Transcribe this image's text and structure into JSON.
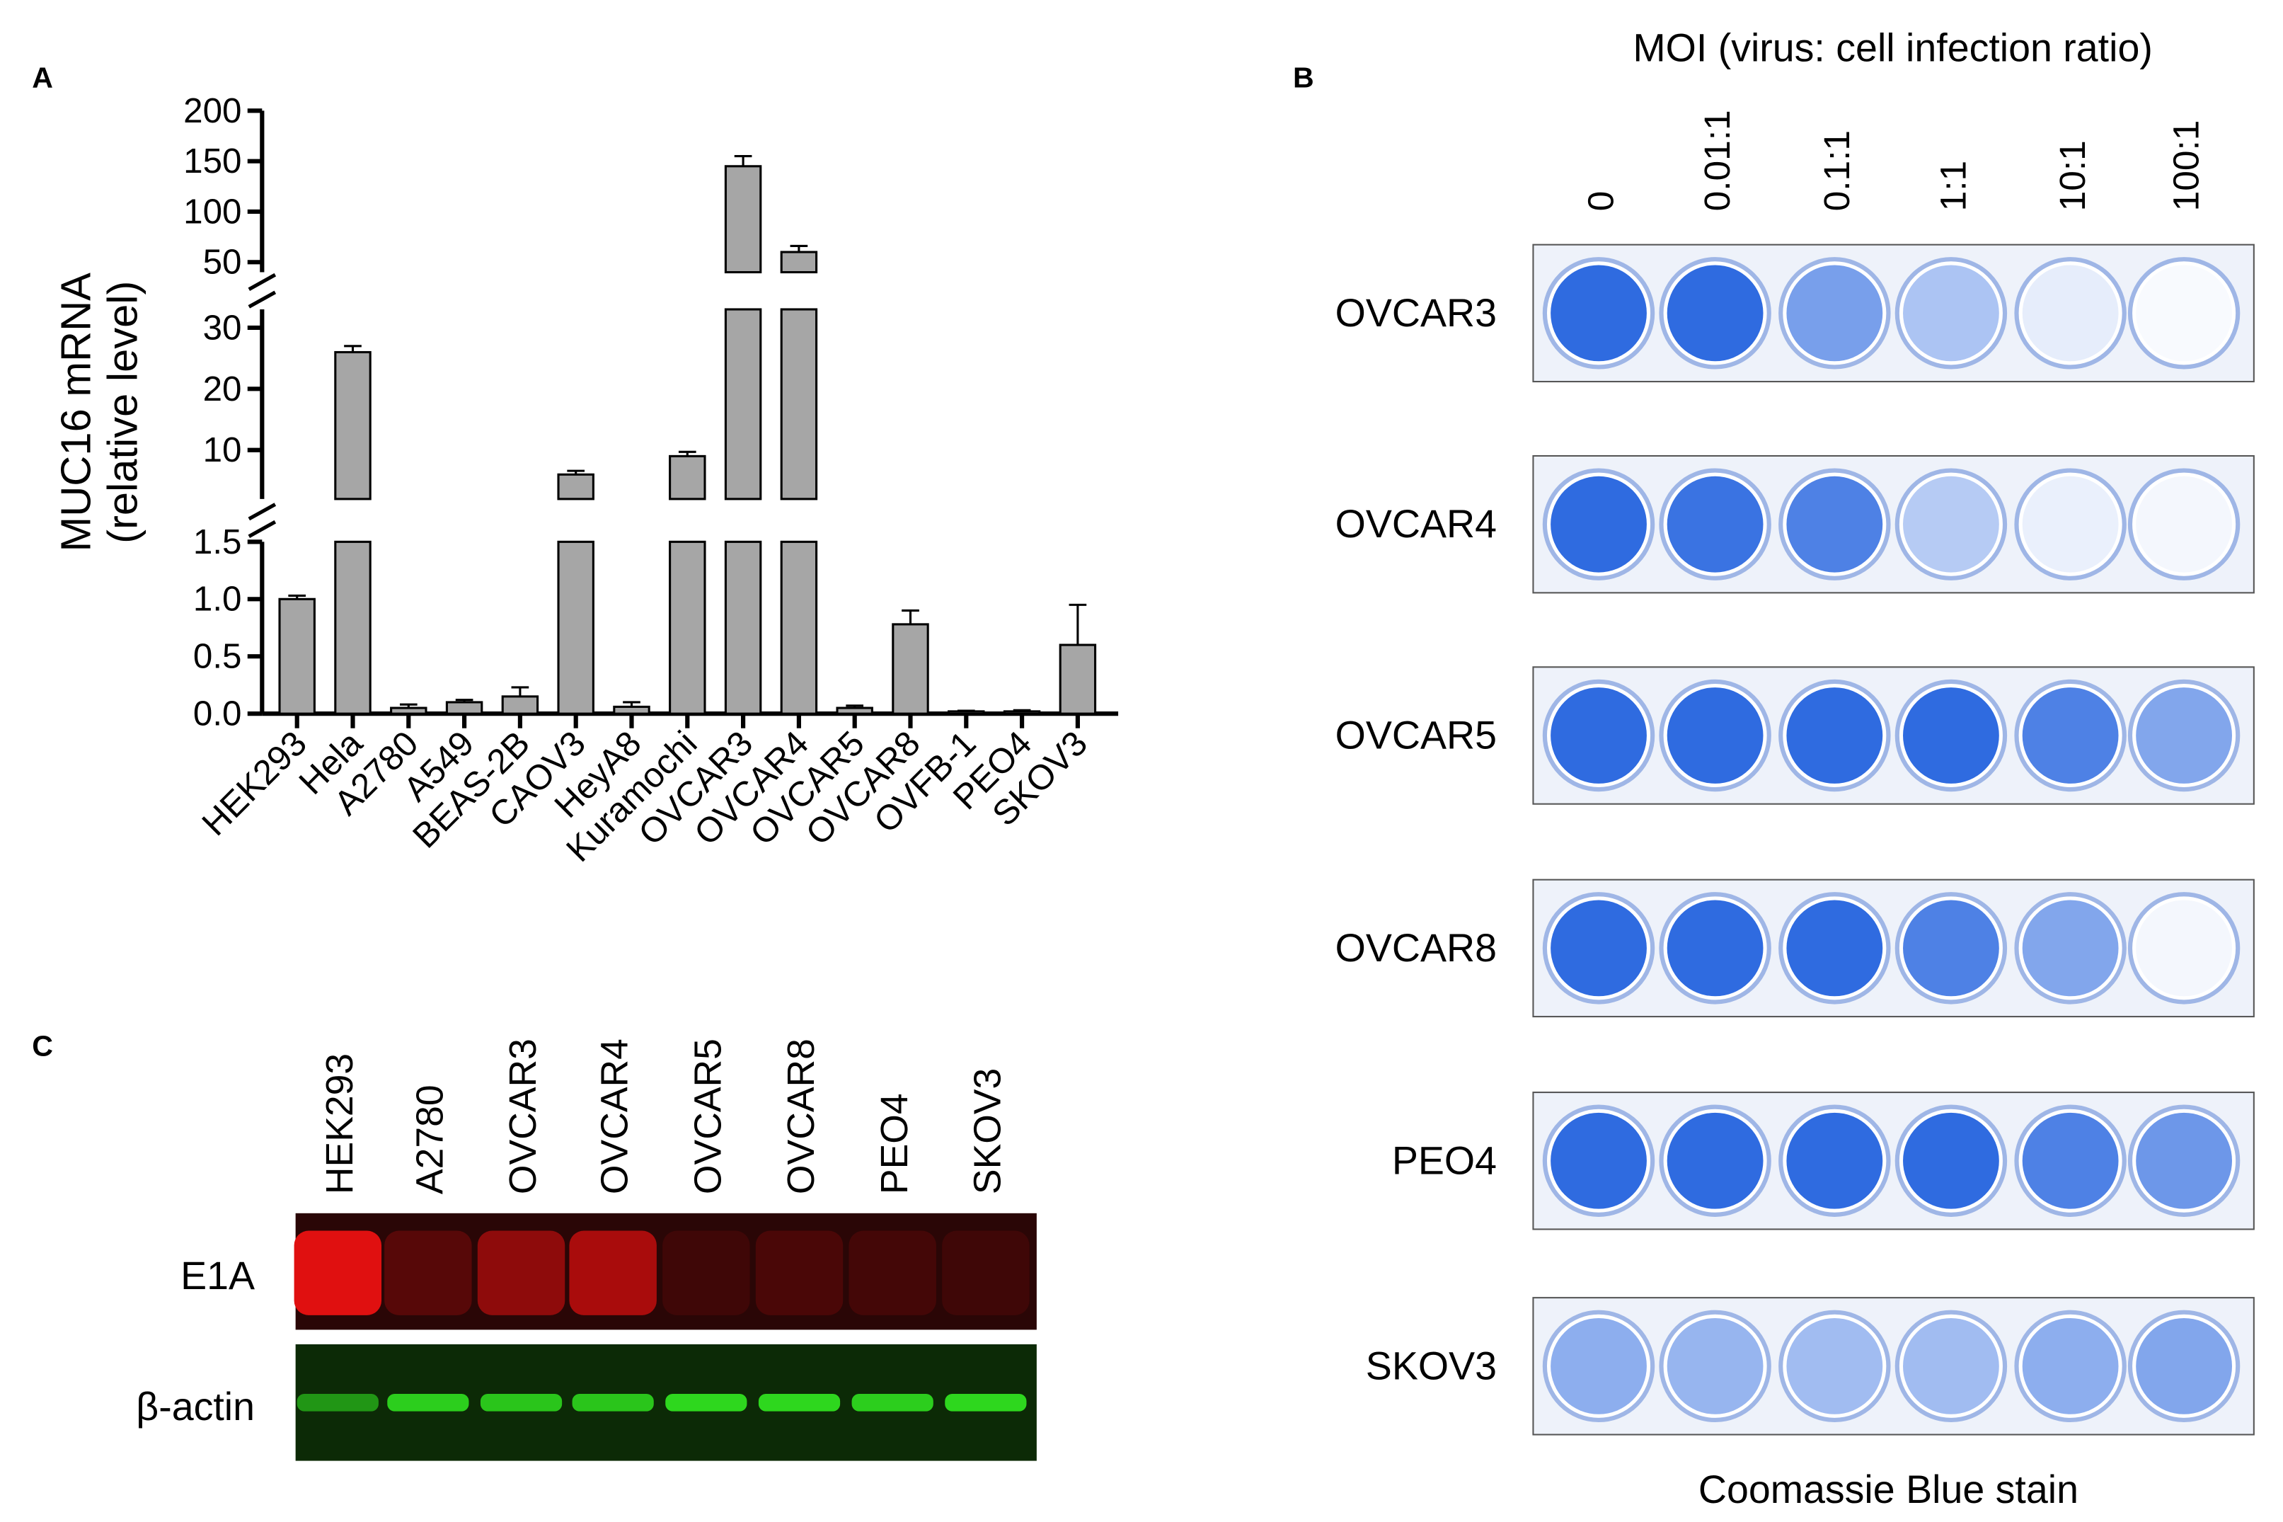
{
  "chart_data": {
    "type": "bar",
    "panel_label": "A",
    "ylabel": [
      "MUC16 mRNA",
      "(relative level)"
    ],
    "categories": [
      "HEK293",
      "Hela",
      "A2780",
      "A549",
      "BEAS-2B",
      "CAOV3",
      "HeyA8",
      "Kuramochi",
      "OVCAR3",
      "OVCAR4",
      "OVCAR5",
      "OVCAR8",
      "OVFB-1",
      "PEO4",
      "SKOV3"
    ],
    "values": [
      1.0,
      26,
      0.05,
      0.1,
      0.15,
      6,
      0.06,
      9,
      145,
      60,
      0.05,
      0.78,
      0.02,
      0.02,
      0.6
    ],
    "errors": [
      0.03,
      1,
      0.03,
      0.02,
      0.08,
      0.6,
      0.04,
      0.7,
      10,
      6,
      0.02,
      0.12,
      0.005,
      0.01,
      0.35
    ],
    "color": "#a6a6a6",
    "y_segments": [
      {
        "ylim": [
          0,
          1.5
        ],
        "yticks": [
          {
            "value": 0,
            "label": "0.0"
          },
          {
            "value": 0.5,
            "label": "0.5"
          },
          {
            "value": 1,
            "label": "1.0"
          },
          1.5
        ]
      },
      {
        "ylim": [
          2,
          33
        ],
        "yticks": [
          10,
          20,
          30
        ]
      },
      {
        "ylim": [
          40,
          200
        ],
        "yticks": [
          50,
          100,
          150,
          200
        ]
      }
    ]
  },
  "panel_b": {
    "panel_label": "B",
    "title": "MOI (virus: cell infection ratio)",
    "columns": [
      "0",
      "0.01:1",
      "0.1:1",
      "1:1",
      "10:1",
      "100:1"
    ],
    "rows": [
      "OVCAR3",
      "OVCAR4",
      "OVCAR5",
      "OVCAR8",
      "PEO4",
      "SKOV3"
    ],
    "caption": "Coomassie Blue stain"
  },
  "panel_c": {
    "panel_label": "C",
    "lanes": [
      "HEK293",
      "A2780",
      "OVCAR3",
      "OVCAR4",
      "OVCAR5",
      "OVCAR8",
      "PEO4",
      "SKOV3"
    ],
    "rows": [
      "E1A",
      "β-actin"
    ]
  }
}
